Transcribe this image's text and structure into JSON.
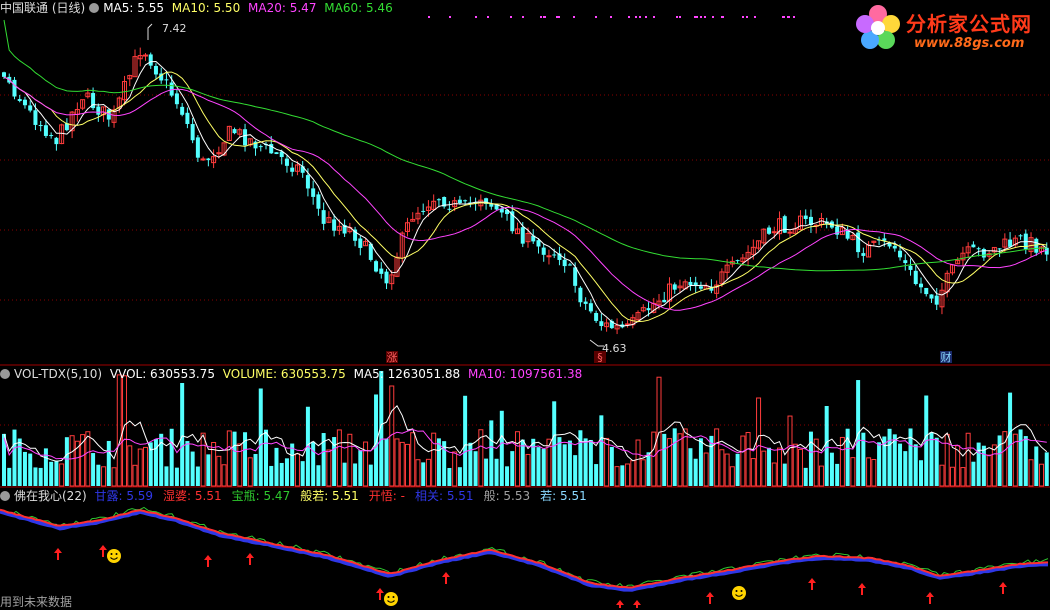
{
  "price_header": {
    "title": "中国联通 (日线)",
    "ma5": "MA5: 5.55",
    "ma10": "MA10: 5.50",
    "ma20": "MA20: 5.47",
    "ma60": "MA60: 5.46"
  },
  "volume_header": {
    "title": "VOL-TDX(5,10)",
    "vvol": "VVOL: 630553.75",
    "volume": "VOLUME: 630553.75",
    "ma5": "MA5: 1263051.88",
    "ma10": "MA10: 1097561.38"
  },
  "indicator_header": {
    "title": "佛在我心(22)",
    "items": [
      {
        "label": "甘露: 5.59",
        "color": "#2f37e6"
      },
      {
        "label": "湿婆: 5.51",
        "color": "#ff3030"
      },
      {
        "label": "宝瓶: 5.47",
        "color": "#2ec82e"
      },
      {
        "label": "般若: 5.51",
        "color": "#ffff66"
      },
      {
        "label": "开悟: -",
        "color": "#ff3030"
      },
      {
        "label": "相关: 5.51",
        "color": "#2f37e6"
      },
      {
        "label": "般: 5.53",
        "color": "#a0a0a0"
      },
      {
        "label": "若: 5.51",
        "color": "#8ad8ff"
      }
    ]
  },
  "logo": {
    "name": "分析家公式网",
    "url": "www.88gs.com"
  },
  "footer": {
    "text": "用到未来数据"
  },
  "colors": {
    "up": "#ff3c3c",
    "down": "#54ffff",
    "ma5": "#ffffff",
    "ma10": "#ffff66",
    "ma20": "#ff44ff",
    "ma60": "#33dd33",
    "divider": "#a00000",
    "grid": "#8a0000"
  },
  "icons": [
    "settings-dot-icon",
    "up-arrow-icon",
    "smiley-icon",
    "flower-logo-icon"
  ],
  "chart_data": {
    "type": "candlestick",
    "y_range": [
      4.45,
      7.5
    ],
    "annotations": {
      "high": "7.42",
      "low": "4.63"
    },
    "event_markers": [
      "涨",
      "§",
      "财"
    ],
    "ma_lines": [
      "MA5",
      "MA10",
      "MA20",
      "MA60"
    ]
  }
}
